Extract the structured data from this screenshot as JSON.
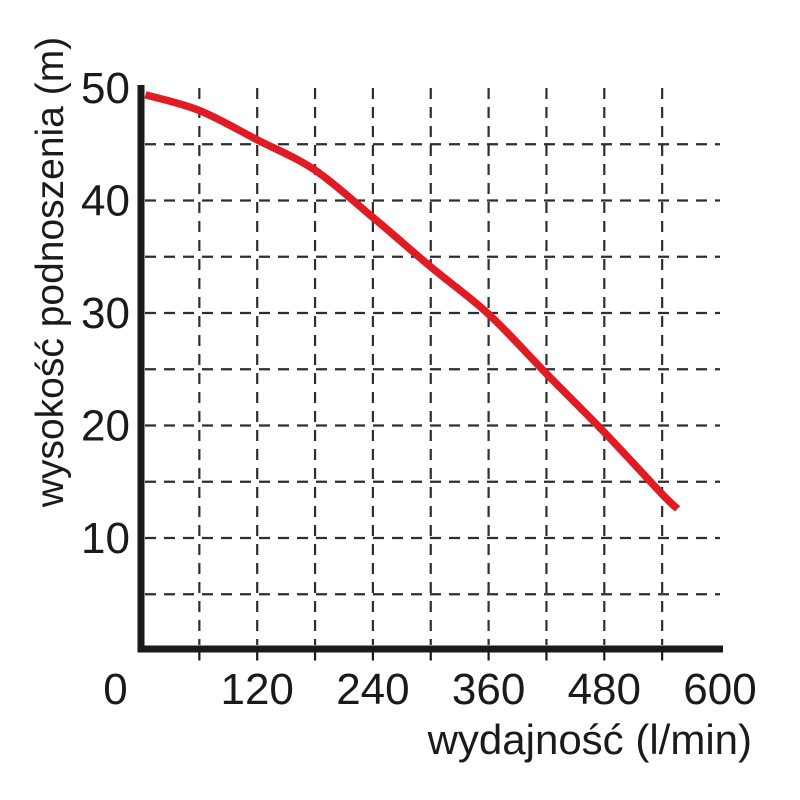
{
  "page": {
    "background": "#ffffff"
  },
  "chart_data": {
    "type": "line",
    "title": "",
    "xlabel": "wydajność (l/min)",
    "ylabel": "wysokość podnoszenia (m)",
    "xlim": [
      0,
      600
    ],
    "ylim": [
      0,
      50
    ],
    "x_tick_labels": [
      0,
      120,
      240,
      360,
      480,
      600
    ],
    "y_tick_labels": [
      50,
      40,
      30,
      20,
      10
    ],
    "x_grid_step": 60,
    "y_grid_step": 5,
    "grid": "dashed",
    "legend": "none",
    "series": [
      {
        "name": "pump-head-curve",
        "color": "#e01b24",
        "points": [
          [
            4,
            49.4
          ],
          [
            60,
            48.0
          ],
          [
            120,
            45.4
          ],
          [
            180,
            42.7
          ],
          [
            240,
            38.5
          ],
          [
            300,
            34.1
          ],
          [
            360,
            29.9
          ],
          [
            420,
            24.6
          ],
          [
            480,
            19.4
          ],
          [
            540,
            13.9
          ],
          [
            556,
            12.6
          ]
        ]
      }
    ],
    "colors": {
      "axis": "#1a1a1a",
      "grid": "#2e2e2e",
      "text": "#1a1a1a",
      "curve": "#e01b24"
    }
  }
}
